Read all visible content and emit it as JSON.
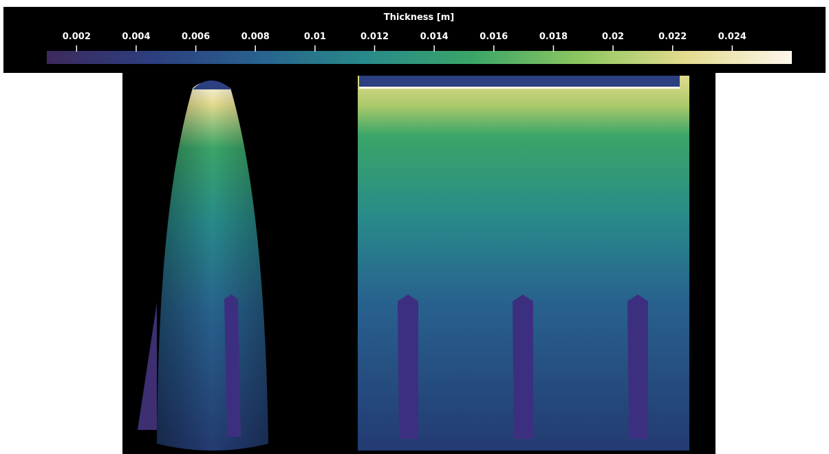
{
  "colorbar": {
    "title": "Thickness [m]",
    "range": [
      0.001,
      0.026
    ],
    "ticks": [
      0.002,
      0.004,
      0.006,
      0.008,
      0.01,
      0.012,
      0.014,
      0.016,
      0.018,
      0.02,
      0.022,
      0.024
    ],
    "colormap": [
      "#3d2a5c",
      "#2c3f80",
      "#28628e",
      "#288a8a",
      "#3aa568",
      "#8cc660",
      "#e3db8e",
      "#fdf6ec"
    ]
  }
}
